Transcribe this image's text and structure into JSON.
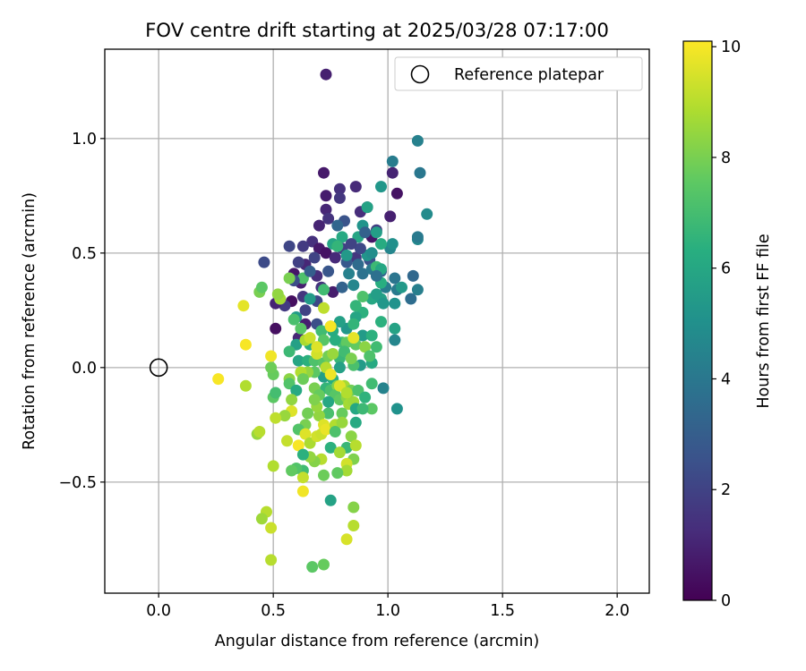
{
  "chart_data": {
    "type": "scatter",
    "title": "FOV centre drift starting at 2025/03/28 07:17:00",
    "xlabel": "Angular distance from reference (arcmin)",
    "ylabel": "Rotation from reference (arcmin)",
    "xlim": [
      -0.235,
      2.14
    ],
    "ylim": [
      -0.985,
      1.39
    ],
    "xticks": [
      0.0,
      0.5,
      1.0,
      1.5,
      2.0
    ],
    "xtick_labels": [
      "0.0",
      "0.5",
      "1.0",
      "1.5",
      "2.0"
    ],
    "yticks": [
      -0.5,
      0.0,
      0.5,
      1.0
    ],
    "ytick_labels": [
      "−0.5",
      "0.0",
      "0.5",
      "1.0"
    ],
    "grid": true,
    "legend": {
      "location": "top-right",
      "entries": [
        "Reference platepar"
      ]
    },
    "reference_point": {
      "x": 0.0,
      "y": 0.0
    },
    "colorbar": {
      "label": "Hours from first FF file",
      "colormap": "viridis",
      "range": [
        0,
        10.1
      ],
      "ticks": [
        0,
        2,
        4,
        6,
        8,
        10
      ],
      "tick_labels": [
        "0",
        "2",
        "4",
        "6",
        "8",
        "10"
      ]
    },
    "points": [
      [
        0.73,
        1.28,
        0.9
      ],
      [
        0.72,
        0.85,
        0.7
      ],
      [
        0.79,
        0.78,
        1.4
      ],
      [
        0.86,
        0.79,
        1.2
      ],
      [
        1.02,
        0.85,
        1.0
      ],
      [
        1.04,
        0.76,
        0.5
      ],
      [
        0.73,
        0.75,
        0.8
      ],
      [
        0.79,
        0.74,
        1.6
      ],
      [
        0.73,
        0.69,
        1.1
      ],
      [
        0.74,
        0.65,
        1.5
      ],
      [
        0.88,
        0.68,
        1.3
      ],
      [
        0.91,
        0.7,
        1.8
      ],
      [
        1.01,
        0.66,
        0.9
      ],
      [
        0.93,
        0.57,
        0.6
      ],
      [
        0.7,
        0.62,
        1.0
      ],
      [
        0.67,
        0.55,
        1.4
      ],
      [
        0.63,
        0.53,
        1.7
      ],
      [
        0.7,
        0.52,
        0.7
      ],
      [
        0.73,
        0.5,
        0.5
      ],
      [
        0.77,
        0.48,
        1.2
      ],
      [
        0.8,
        0.52,
        1.9
      ],
      [
        0.57,
        0.53,
        2.1
      ],
      [
        0.46,
        0.46,
        2.3
      ],
      [
        0.64,
        0.45,
        1.1
      ],
      [
        0.59,
        0.41,
        0.6
      ],
      [
        0.62,
        0.37,
        0.9
      ],
      [
        0.69,
        0.4,
        1.3
      ],
      [
        0.71,
        0.35,
        1.5
      ],
      [
        0.76,
        0.33,
        0.8
      ],
      [
        0.63,
        0.31,
        1.6
      ],
      [
        0.58,
        0.29,
        0.4
      ],
      [
        0.55,
        0.27,
        1.7
      ],
      [
        0.51,
        0.28,
        1.0
      ],
      [
        0.64,
        0.25,
        2.0
      ],
      [
        0.69,
        0.29,
        2.2
      ],
      [
        0.64,
        0.19,
        0.9
      ],
      [
        0.51,
        0.17,
        0.4
      ],
      [
        0.61,
        0.13,
        1.1
      ],
      [
        0.69,
        0.19,
        2.4
      ],
      [
        0.95,
        0.6,
        1.8
      ],
      [
        0.92,
        0.47,
        2.5
      ],
      [
        0.86,
        0.48,
        1.6
      ],
      [
        0.82,
        0.46,
        2.8
      ],
      [
        0.87,
        0.45,
        3.5
      ],
      [
        0.89,
        0.41,
        3.8
      ],
      [
        0.93,
        0.43,
        4.0
      ],
      [
        0.97,
        0.42,
        3.2
      ],
      [
        0.99,
        0.35,
        4.2
      ],
      [
        1.03,
        0.39,
        3.9
      ],
      [
        1.11,
        0.4,
        3.4
      ],
      [
        1.13,
        0.34,
        4.3
      ],
      [
        1.1,
        0.3,
        3.6
      ],
      [
        1.04,
        0.34,
        4.1
      ],
      [
        1.01,
        0.52,
        4.6
      ],
      [
        1.02,
        0.54,
        5.0
      ],
      [
        1.13,
        0.56,
        4.7
      ],
      [
        1.13,
        0.57,
        4.1
      ],
      [
        1.13,
        0.99,
        4.4
      ],
      [
        1.14,
        0.85,
        4.0
      ],
      [
        1.17,
        0.67,
        4.8
      ],
      [
        1.02,
        0.9,
        4.2
      ],
      [
        0.97,
        0.79,
        5.3
      ],
      [
        0.91,
        0.7,
        5.8
      ],
      [
        0.95,
        0.59,
        5.6
      ],
      [
        0.89,
        0.62,
        5.2
      ],
      [
        0.87,
        0.57,
        5.9
      ],
      [
        0.8,
        0.57,
        6.1
      ],
      [
        0.76,
        0.54,
        5.9
      ],
      [
        0.78,
        0.53,
        6.6
      ],
      [
        0.82,
        0.49,
        5.4
      ],
      [
        0.91,
        0.49,
        5.2
      ],
      [
        0.95,
        0.44,
        6.8
      ],
      [
        0.97,
        0.37,
        6.3
      ],
      [
        0.85,
        0.36,
        4.6
      ],
      [
        0.93,
        0.3,
        6.0
      ],
      [
        0.89,
        0.31,
        7.2
      ],
      [
        0.97,
        0.3,
        5.7
      ],
      [
        0.89,
        0.24,
        6.4
      ],
      [
        0.86,
        0.22,
        5.9
      ],
      [
        0.97,
        0.2,
        6.4
      ],
      [
        1.03,
        0.28,
        5.1
      ],
      [
        1.03,
        0.17,
        5.8
      ],
      [
        1.03,
        0.12,
        4.6
      ],
      [
        0.89,
        0.14,
        5.5
      ],
      [
        0.93,
        0.14,
        6.4
      ],
      [
        0.95,
        0.09,
        6.9
      ],
      [
        0.93,
        0.02,
        6.1
      ],
      [
        0.88,
        0.01,
        5.5
      ],
      [
        0.85,
        0.01,
        7.1
      ],
      [
        0.86,
        0.1,
        7.6
      ],
      [
        0.8,
        0.11,
        7.0
      ],
      [
        0.82,
        0.11,
        7.6
      ],
      [
        0.77,
        0.12,
        6.3
      ],
      [
        0.76,
        0.16,
        6.2
      ],
      [
        0.82,
        0.17,
        5.3
      ],
      [
        0.79,
        0.2,
        5.7
      ],
      [
        0.85,
        0.19,
        6.6
      ],
      [
        0.75,
        0.18,
        7.0
      ],
      [
        0.71,
        0.16,
        6.9
      ],
      [
        0.72,
        0.12,
        7.4
      ],
      [
        0.66,
        0.1,
        6.3
      ],
      [
        0.6,
        0.1,
        5.7
      ],
      [
        0.57,
        0.07,
        6.8
      ],
      [
        0.61,
        0.03,
        5.9
      ],
      [
        0.65,
        0.03,
        6.4
      ],
      [
        0.68,
        0.03,
        7.2
      ],
      [
        0.72,
        0.02,
        7.4
      ],
      [
        0.74,
        0.05,
        7.9
      ],
      [
        0.79,
        0.04,
        6.7
      ],
      [
        0.79,
        0.0,
        5.7
      ],
      [
        0.76,
        -0.05,
        6.3
      ],
      [
        0.72,
        -0.04,
        5.6
      ],
      [
        0.68,
        -0.02,
        7.5
      ],
      [
        0.65,
        -0.02,
        8.4
      ],
      [
        0.62,
        -0.02,
        8.9
      ],
      [
        0.57,
        -0.05,
        8.3
      ],
      [
        0.57,
        -0.07,
        7.3
      ],
      [
        0.6,
        -0.1,
        6.1
      ],
      [
        0.63,
        -0.05,
        7.8
      ],
      [
        0.68,
        -0.09,
        8.0
      ],
      [
        0.73,
        -0.09,
        6.6
      ],
      [
        0.75,
        -0.1,
        7.1
      ],
      [
        0.78,
        -0.08,
        8.2
      ],
      [
        0.81,
        -0.08,
        8.7
      ],
      [
        0.84,
        -0.1,
        7.9
      ],
      [
        0.87,
        -0.1,
        7.2
      ],
      [
        0.93,
        -0.07,
        6.9
      ],
      [
        0.98,
        -0.09,
        4.5
      ],
      [
        0.77,
        -0.12,
        7.4
      ],
      [
        0.79,
        -0.14,
        7.6
      ],
      [
        0.82,
        -0.13,
        8.3
      ],
      [
        0.83,
        -0.16,
        8.7
      ],
      [
        0.85,
        -0.15,
        8.6
      ],
      [
        0.86,
        -0.18,
        6.0
      ],
      [
        0.9,
        -0.13,
        6.5
      ],
      [
        0.93,
        -0.18,
        7.5
      ],
      [
        1.04,
        -0.18,
        5.1
      ],
      [
        0.8,
        -0.2,
        7.7
      ],
      [
        0.74,
        -0.2,
        7.1
      ],
      [
        0.7,
        -0.21,
        8.4
      ],
      [
        0.69,
        -0.17,
        8.5
      ],
      [
        0.65,
        -0.2,
        7.9
      ],
      [
        0.64,
        -0.25,
        8.0
      ],
      [
        0.61,
        -0.27,
        7.3
      ],
      [
        0.58,
        -0.14,
        8.4
      ],
      [
        0.58,
        -0.19,
        9.6
      ],
      [
        0.55,
        -0.21,
        8.5
      ],
      [
        0.51,
        -0.22,
        9.1
      ],
      [
        0.5,
        -0.13,
        7.5
      ],
      [
        0.51,
        -0.11,
        7.0
      ],
      [
        0.5,
        -0.03,
        7.7
      ],
      [
        0.49,
        0.0,
        7.8
      ],
      [
        0.49,
        0.05,
        9.9
      ],
      [
        0.44,
        0.33,
        8.0
      ],
      [
        0.45,
        0.35,
        7.5
      ],
      [
        0.37,
        0.27,
        9.7
      ],
      [
        0.38,
        0.1,
        10.0
      ],
      [
        0.38,
        -0.08,
        8.9
      ],
      [
        0.26,
        -0.05,
        10.0
      ],
      [
        0.43,
        -0.29,
        8.5
      ],
      [
        0.44,
        -0.28,
        9.0
      ],
      [
        0.56,
        -0.32,
        9.2
      ],
      [
        0.61,
        -0.34,
        10.0
      ],
      [
        0.64,
        -0.29,
        9.6
      ],
      [
        0.66,
        -0.33,
        8.8
      ],
      [
        0.69,
        -0.3,
        9.4
      ],
      [
        0.71,
        -0.29,
        9.3
      ],
      [
        0.72,
        -0.25,
        9.6
      ],
      [
        0.73,
        -0.27,
        9.8
      ],
      [
        0.77,
        -0.25,
        8.9
      ],
      [
        0.77,
        -0.28,
        7.2
      ],
      [
        0.8,
        -0.24,
        8.5
      ],
      [
        0.84,
        -0.3,
        8.3
      ],
      [
        0.86,
        -0.24,
        6.1
      ],
      [
        0.89,
        -0.18,
        6.8
      ],
      [
        0.75,
        -0.35,
        6.4
      ],
      [
        0.82,
        -0.35,
        6.7
      ],
      [
        0.86,
        -0.34,
        9.0
      ],
      [
        0.85,
        -0.4,
        8.1
      ],
      [
        0.79,
        -0.37,
        8.7
      ],
      [
        0.82,
        -0.42,
        9.4
      ],
      [
        0.82,
        -0.45,
        8.7
      ],
      [
        0.78,
        -0.46,
        7.6
      ],
      [
        0.72,
        -0.47,
        7.8
      ],
      [
        0.71,
        -0.4,
        9.0
      ],
      [
        0.68,
        -0.41,
        8.2
      ],
      [
        0.66,
        -0.39,
        8.4
      ],
      [
        0.63,
        -0.38,
        6.4
      ],
      [
        0.63,
        -0.45,
        6.9
      ],
      [
        0.63,
        -0.48,
        9.2
      ],
      [
        0.6,
        -0.44,
        7.3
      ],
      [
        0.58,
        -0.45,
        7.6
      ],
      [
        0.5,
        -0.43,
        8.9
      ],
      [
        0.63,
        -0.54,
        9.9
      ],
      [
        0.75,
        -0.58,
        5.8
      ],
      [
        0.85,
        -0.61,
        8.2
      ],
      [
        0.85,
        -0.69,
        9.0
      ],
      [
        0.82,
        -0.75,
        9.5
      ],
      [
        0.47,
        -0.63,
        9.0
      ],
      [
        0.45,
        -0.66,
        8.6
      ],
      [
        0.49,
        -0.7,
        9.3
      ],
      [
        0.49,
        -0.84,
        9.0
      ],
      [
        0.67,
        -0.87,
        7.5
      ],
      [
        0.72,
        -0.86,
        7.7
      ],
      [
        0.6,
        0.22,
        5.5
      ],
      [
        0.62,
        0.17,
        7.4
      ],
      [
        0.66,
        0.3,
        5.5
      ],
      [
        0.72,
        0.26,
        9.1
      ],
      [
        0.75,
        0.18,
        10.0
      ],
      [
        0.85,
        0.13,
        9.7
      ],
      [
        0.64,
        0.12,
        8.8
      ],
      [
        0.69,
        0.06,
        9.4
      ],
      [
        0.73,
        0.0,
        9.0
      ],
      [
        0.75,
        -0.03,
        9.9
      ],
      [
        0.79,
        -0.08,
        9.6
      ],
      [
        0.82,
        -0.11,
        8.9
      ],
      [
        0.59,
        0.21,
        7.1
      ],
      [
        0.63,
        0.39,
        7.2
      ],
      [
        0.72,
        0.34,
        6.9
      ],
      [
        0.69,
        0.09,
        9.6
      ],
      [
        0.76,
        0.06,
        8.5
      ],
      [
        0.81,
        0.07,
        6.9
      ],
      [
        0.84,
        0.04,
        8.0
      ],
      [
        0.9,
        0.09,
        8.3
      ],
      [
        0.92,
        0.05,
        7.2
      ],
      [
        0.86,
        0.27,
        6.6
      ],
      [
        0.95,
        0.32,
        5.6
      ],
      [
        0.98,
        0.28,
        5.3
      ],
      [
        0.97,
        0.43,
        6.0
      ],
      [
        0.95,
        0.4,
        3.7
      ],
      [
        0.83,
        0.41,
        4.4
      ],
      [
        0.8,
        0.35,
        3.2
      ],
      [
        0.74,
        0.42,
        2.7
      ],
      [
        0.68,
        0.48,
        2.0
      ],
      [
        0.66,
        0.42,
        3.0
      ],
      [
        0.61,
        0.46,
        1.9
      ],
      [
        0.59,
        0.38,
        2.4
      ],
      [
        0.93,
        0.5,
        4.9
      ],
      [
        0.88,
        0.52,
        2.2
      ],
      [
        0.9,
        0.59,
        3.1
      ],
      [
        0.81,
        0.64,
        2.6
      ],
      [
        0.84,
        0.54,
        2.0
      ],
      [
        0.78,
        0.62,
        3.3
      ],
      [
        0.97,
        0.54,
        6.2
      ],
      [
        1.06,
        0.35,
        5.4
      ],
      [
        0.57,
        0.39,
        8.0
      ],
      [
        0.53,
        0.3,
        8.7
      ],
      [
        0.52,
        0.32,
        8.4
      ],
      [
        0.66,
        0.13,
        9.3
      ],
      [
        0.7,
        -0.12,
        7.7
      ],
      [
        0.68,
        -0.14,
        8.1
      ],
      [
        0.74,
        -0.15,
        6.0
      ]
    ]
  }
}
